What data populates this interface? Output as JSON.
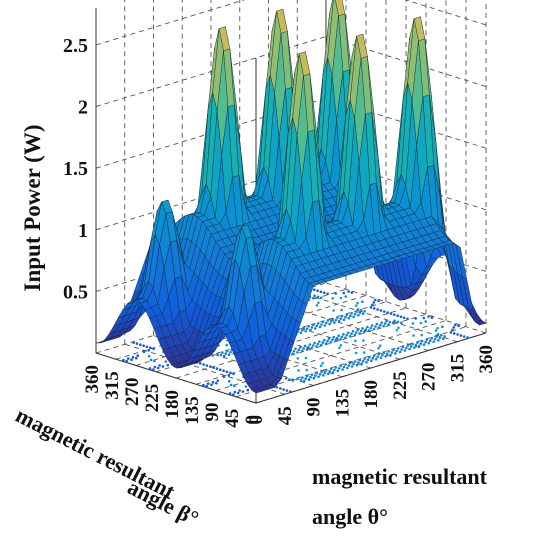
{
  "chart_data": {
    "type": "surface",
    "zlabel": "Input Power (W)",
    "xlabel": {
      "line1": "magnetic resultant",
      "line2": "angle β°"
    },
    "ylabel": {
      "line1": "magnetic resultant",
      "line2": "angle θ°"
    },
    "beta_ticks": [
      "0",
      "45",
      "90",
      "135",
      "180",
      "225",
      "270",
      "315",
      "360"
    ],
    "theta_ticks": [
      "0",
      "45",
      "90",
      "135",
      "180",
      "225",
      "270",
      "315",
      "360"
    ],
    "z_ticks": [
      "0.5",
      "1",
      "1.5",
      "2",
      "2.5"
    ],
    "zlim": [
      0,
      2.8
    ],
    "xlim": [
      0,
      360
    ],
    "ylim": [
      0,
      360
    ],
    "peaks_approx": [
      {
        "beta": 90,
        "theta": 45,
        "z": 1.3
      },
      {
        "beta": 270,
        "theta": 45,
        "z": 1.3
      },
      {
        "beta": 90,
        "theta": 135,
        "z": 2.6
      },
      {
        "beta": 270,
        "theta": 135,
        "z": 2.6
      },
      {
        "beta": 90,
        "theta": 225,
        "z": 2.6
      },
      {
        "beta": 270,
        "theta": 225,
        "z": 2.6
      },
      {
        "beta": 90,
        "theta": 315,
        "z": 2.6
      },
      {
        "beta": 270,
        "theta": 315,
        "z": 2.6
      }
    ],
    "baseline_plateau_approx": 1.2,
    "colormap": "parula",
    "grid": true,
    "contour_projection_on_floor": true
  }
}
